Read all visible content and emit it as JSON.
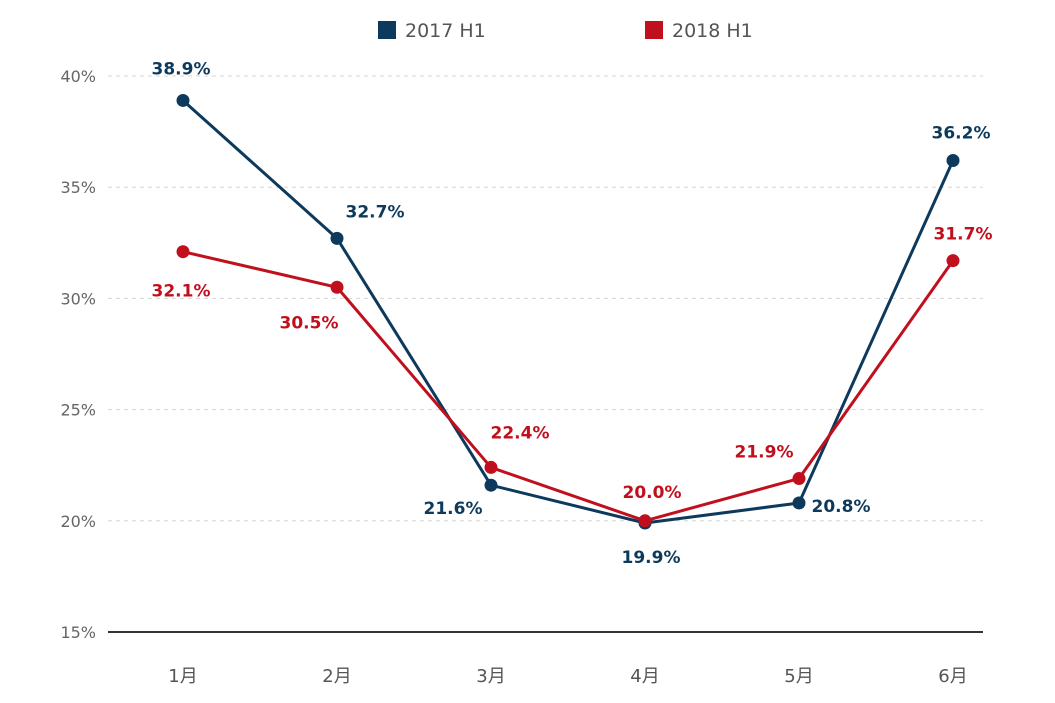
{
  "chart_data": {
    "type": "line",
    "title": "",
    "xlabel": "",
    "ylabel": "",
    "categories": [
      "1月",
      "2月",
      "3月",
      "4月",
      "5月",
      "6月"
    ],
    "ylim": [
      15,
      40
    ],
    "yticks": [
      40,
      35,
      30,
      25,
      20,
      15
    ],
    "ytick_labels": [
      "40%",
      "35%",
      "30%",
      "25%",
      "20%",
      "15%"
    ],
    "grid": "horizontal dashed",
    "legend_position": "top-center",
    "series": [
      {
        "name": "2017 H1",
        "color": "#0d3a5c",
        "values": [
          38.9,
          32.7,
          21.6,
          19.9,
          20.8,
          36.2
        ],
        "labels": [
          "38.9%",
          "32.7%",
          "21.6%",
          "19.9%",
          "20.8%",
          "36.2%"
        ]
      },
      {
        "name": "2018 H1",
        "color": "#c0101d",
        "values": [
          32.1,
          30.5,
          22.4,
          20.0,
          21.9,
          31.7
        ],
        "labels": [
          "32.1%",
          "30.5%",
          "22.4%",
          "20.0%",
          "21.9%",
          "31.7%"
        ]
      }
    ]
  }
}
